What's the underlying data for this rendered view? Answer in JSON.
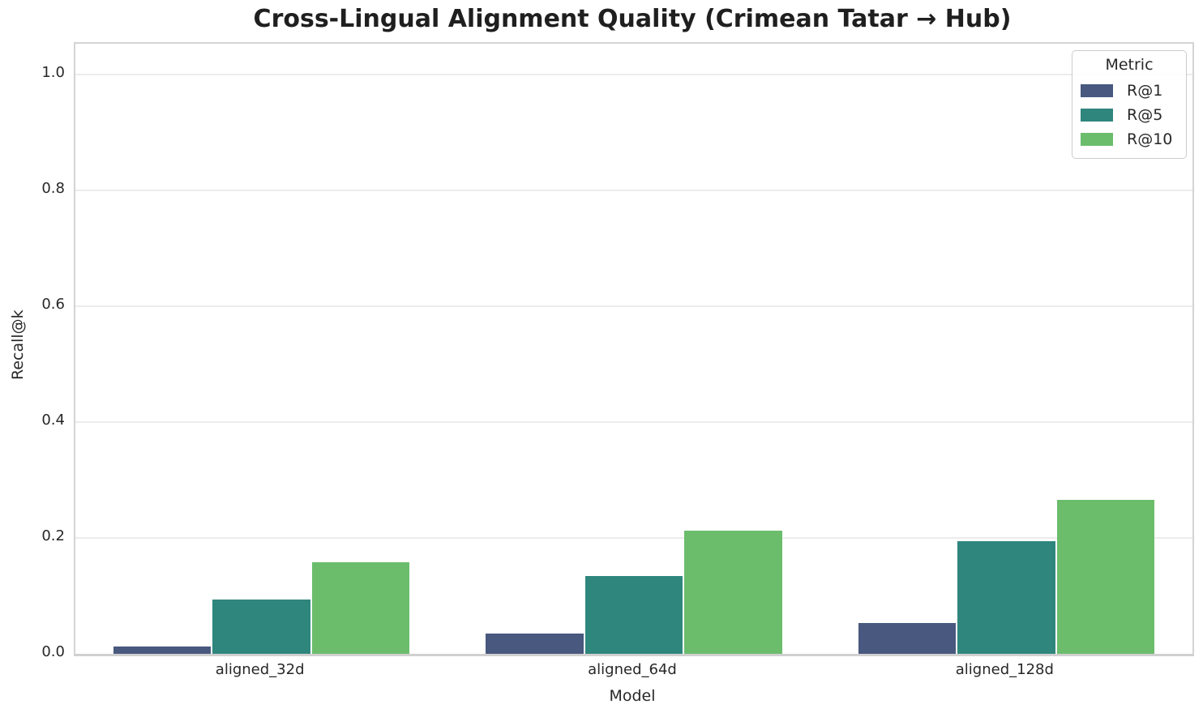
{
  "chart_data": {
    "type": "bar",
    "title": "Cross-Lingual Alignment Quality (Crimean Tatar → Hub)",
    "xlabel": "Model",
    "ylabel": "Recall@k",
    "categories": [
      "aligned_32d",
      "aligned_64d",
      "aligned_128d"
    ],
    "series": [
      {
        "name": "R@1",
        "color": "#48587E",
        "values": [
          0.013,
          0.035,
          0.053
        ]
      },
      {
        "name": "R@5",
        "color": "#2F867D",
        "values": [
          0.094,
          0.134,
          0.195
        ]
      },
      {
        "name": "R@10",
        "color": "#6BBD6C",
        "values": [
          0.158,
          0.212,
          0.266
        ]
      }
    ],
    "legend": {
      "title": "Metric",
      "position": "upper right"
    },
    "yticks": [
      {
        "value": 0.0,
        "label": "0.0"
      },
      {
        "value": 0.2,
        "label": "0.2"
      },
      {
        "value": 0.4,
        "label": "0.4"
      },
      {
        "value": 0.6,
        "label": "0.6"
      },
      {
        "value": 0.8,
        "label": "0.8"
      },
      {
        "value": 1.0,
        "label": "1.0"
      }
    ],
    "ylim": [
      0,
      1.053
    ],
    "grid": true,
    "bar_group_width_fraction": 0.8,
    "axis_colors": {
      "grid": "#ececec",
      "spine": "#d4d4d4",
      "text": "#282828",
      "title": "#1f1f1f"
    }
  }
}
